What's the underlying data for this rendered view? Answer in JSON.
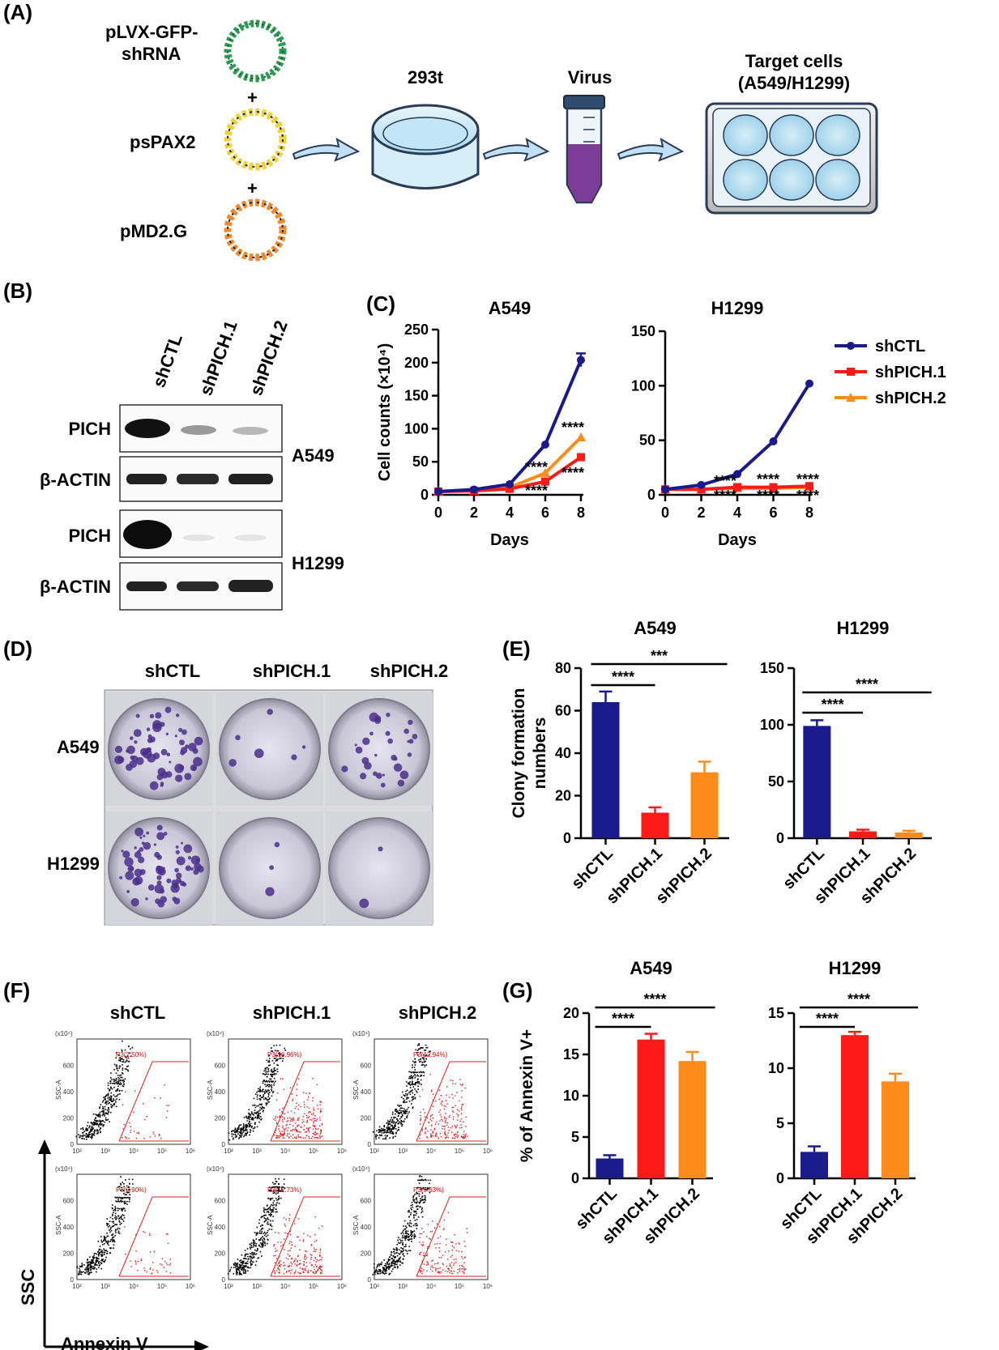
{
  "panels": {
    "A": {
      "label": "(A)",
      "plasmids": [
        "pLVX-GFP-\nshRNA",
        "psPAX2",
        "pMD2.G"
      ],
      "plasmid_line1": "pLVX-GFP-",
      "plasmid_line2": "shRNA",
      "plus": "+",
      "dish_label": "293t",
      "virus_label": "Virus",
      "target_label_1": "Target cells",
      "target_label_2": "(A549/H1299)"
    },
    "B": {
      "label": "(B)",
      "lanes": [
        "shCTL",
        "shPICH.1",
        "shPICH.2"
      ],
      "rows": [
        "PICH",
        "β-ACTIN",
        "PICH",
        "β-ACTIN"
      ],
      "cell_lines": [
        "A549",
        "H1299"
      ]
    },
    "C": {
      "label": "(C)"
    },
    "D": {
      "label": "(D)",
      "columns": [
        "shCTL",
        "shPICH.1",
        "shPICH.2"
      ],
      "rows": [
        "A549",
        "H1299"
      ]
    },
    "E": {
      "label": "(E)"
    },
    "F": {
      "label": "(F)",
      "columns": [
        "shCTL",
        "shPICH.1",
        "shPICH.2"
      ],
      "gate_labels": [
        "P3(2.50%)",
        "P3(16.96%)",
        "P3(12.94%)",
        "P3(2.90%)",
        "P3(12.73%)",
        "P3(9.63%)"
      ],
      "y_axis": "SSC",
      "x_axis": "Annexin V",
      "mini_y": "SSC-A",
      "mini_scale": "(x10⁴)",
      "mini_yticks": [
        "0",
        "200",
        "400",
        "600"
      ],
      "mini_xticks": [
        "10²",
        "10³",
        "10⁴",
        "10⁵",
        "10⁶"
      ]
    },
    "G": {
      "label": "(G)"
    }
  },
  "colors": {
    "shCTL": "#1a1a8c",
    "shPICH.1": "#ff1a1a",
    "shPICH.2": "#ff8c1a"
  },
  "chart_data": [
    {
      "id": "C-A549",
      "type": "line",
      "title": "A549",
      "xlabel": "Days",
      "ylabel": "Cell counts (×10⁴)",
      "x": [
        0,
        2,
        4,
        6,
        8
      ],
      "xlim": [
        0,
        8
      ],
      "ylim": [
        0,
        250
      ],
      "yticks": [
        0,
        50,
        100,
        150,
        200,
        250
      ],
      "series": [
        {
          "name": "shCTL",
          "values": [
            5,
            8,
            16,
            76,
            204
          ],
          "error": [
            0,
            0,
            0,
            0,
            10
          ]
        },
        {
          "name": "shPICH.1",
          "values": [
            5,
            6,
            9,
            20,
            57
          ]
        },
        {
          "name": "shPICH.2",
          "values": [
            5,
            6,
            11,
            33,
            87
          ]
        }
      ],
      "annotations": [
        "****",
        "****",
        "****",
        "****"
      ]
    },
    {
      "id": "C-H1299",
      "type": "line",
      "title": "H1299",
      "xlabel": "Days",
      "x": [
        0,
        2,
        4,
        6,
        8
      ],
      "xlim": [
        0,
        8
      ],
      "ylim": [
        0,
        150
      ],
      "yticks": [
        0,
        50,
        100,
        150
      ],
      "series": [
        {
          "name": "shCTL",
          "values": [
            5,
            9,
            19,
            49,
            102
          ]
        },
        {
          "name": "shPICH.1",
          "values": [
            5,
            5,
            7,
            7,
            8
          ]
        },
        {
          "name": "shPICH.2",
          "values": [
            5,
            5,
            6,
            6,
            7
          ]
        }
      ],
      "annotations": [
        "****",
        "****",
        "****",
        "****",
        "****",
        "****"
      ],
      "legend": [
        "shCTL",
        "shPICH.1",
        "shPICH.2"
      ],
      "legend_position": "right"
    },
    {
      "id": "E-A549",
      "type": "bar",
      "title": "A549",
      "ylabel": "Clony formation numbers",
      "categories": [
        "shCTL",
        "shPICH.1",
        "shPICH.2"
      ],
      "values": [
        64,
        12,
        31
      ],
      "errors": [
        5,
        2.5,
        5
      ],
      "ylim": [
        0,
        80
      ],
      "yticks": [
        0,
        20,
        40,
        60,
        80
      ],
      "significance": [
        {
          "pair": [
            0,
            1
          ],
          "label": "****"
        },
        {
          "pair": [
            0,
            2
          ],
          "label": "***"
        }
      ]
    },
    {
      "id": "E-H1299",
      "type": "bar",
      "title": "H1299",
      "categories": [
        "shCTL",
        "shPICH.1",
        "shPICH.2"
      ],
      "values": [
        99,
        6,
        5
      ],
      "errors": [
        5,
        1.5,
        1.5
      ],
      "ylim": [
        0,
        150
      ],
      "yticks": [
        0,
        50,
        100,
        150
      ],
      "significance": [
        {
          "pair": [
            0,
            1
          ],
          "label": "****"
        },
        {
          "pair": [
            0,
            2
          ],
          "label": "****"
        }
      ]
    },
    {
      "id": "G-A549",
      "type": "bar",
      "title": "A549",
      "ylabel": "% of Annexin V+",
      "categories": [
        "shCTL",
        "shPICH.1",
        "shPICH.2"
      ],
      "values": [
        2.4,
        16.8,
        14.2
      ],
      "errors": [
        0.4,
        0.7,
        1.1
      ],
      "ylim": [
        0,
        20
      ],
      "yticks": [
        0,
        5,
        10,
        15,
        20
      ],
      "significance": [
        {
          "pair": [
            0,
            1
          ],
          "label": "****"
        },
        {
          "pair": [
            0,
            2
          ],
          "label": "****"
        }
      ]
    },
    {
      "id": "G-H1299",
      "type": "bar",
      "title": "H1299",
      "categories": [
        "shCTL",
        "shPICH.1",
        "shPICH.2"
      ],
      "values": [
        2.4,
        13.0,
        8.8
      ],
      "errors": [
        0.5,
        0.3,
        0.7
      ],
      "ylim": [
        0,
        15
      ],
      "yticks": [
        0,
        5,
        10,
        15
      ],
      "significance": [
        {
          "pair": [
            0,
            1
          ],
          "label": "****"
        },
        {
          "pair": [
            0,
            2
          ],
          "label": "****"
        }
      ]
    }
  ]
}
